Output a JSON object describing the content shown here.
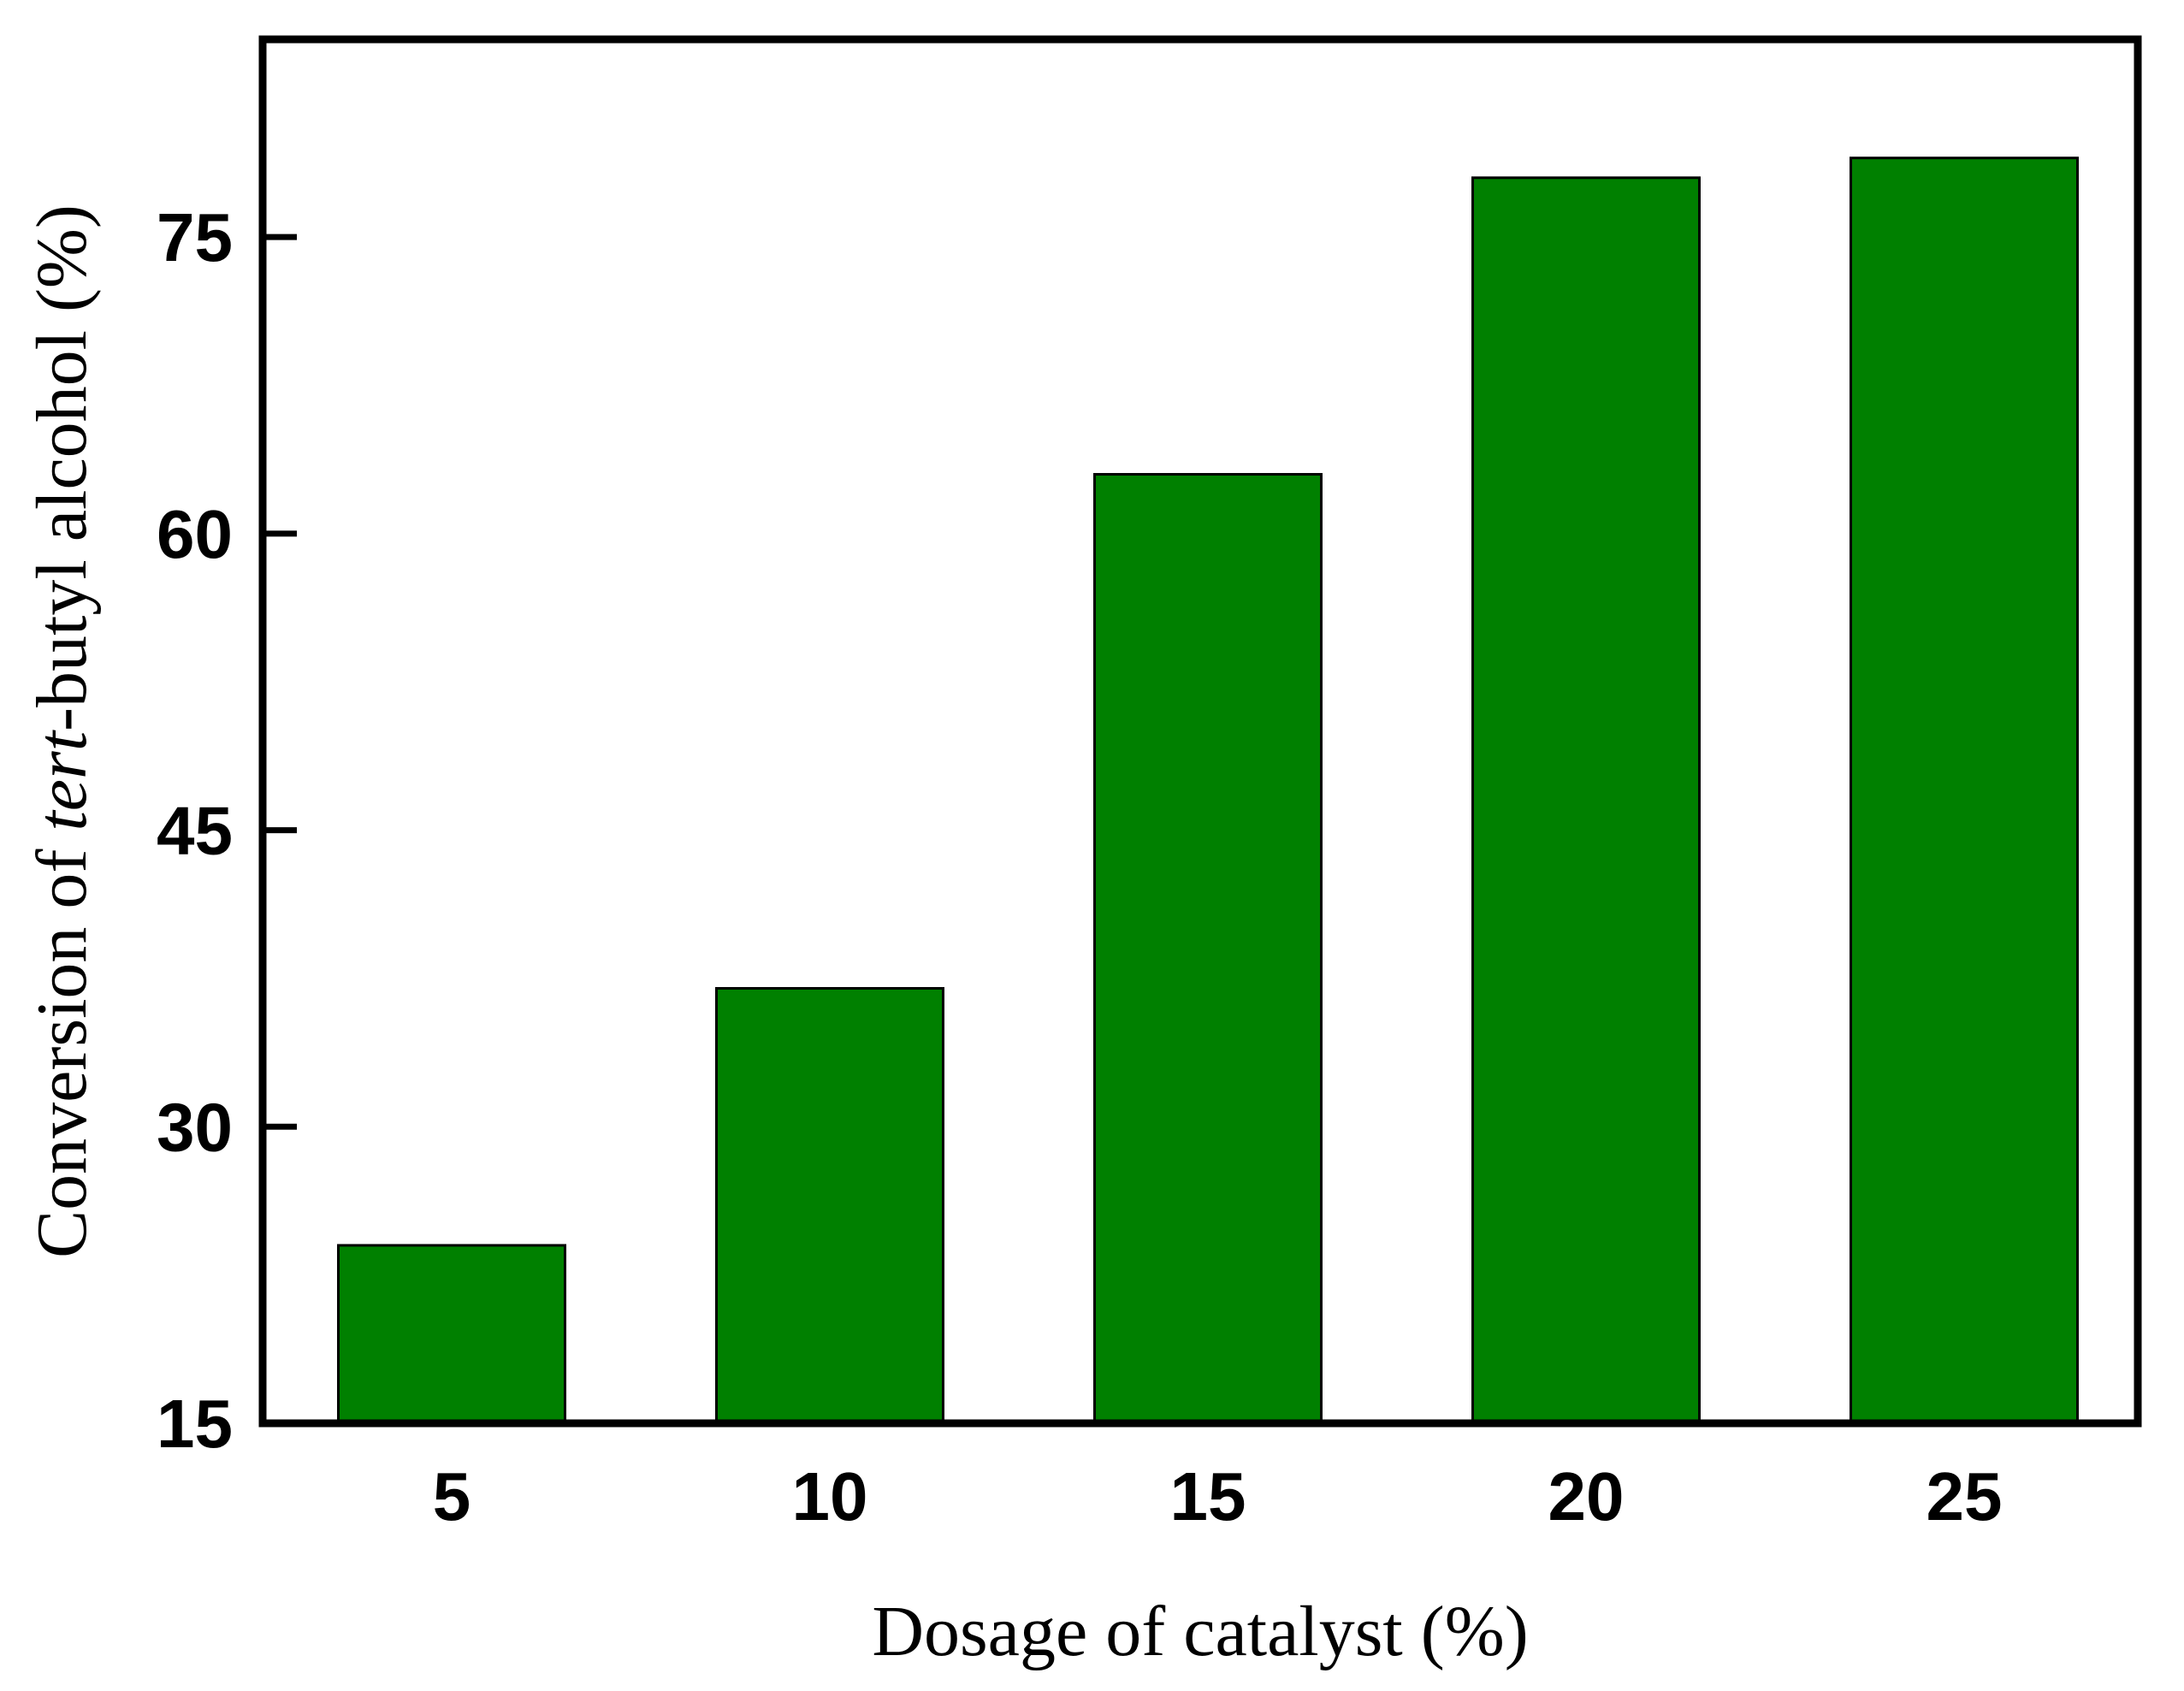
{
  "chart_data": {
    "type": "bar",
    "categories": [
      "5",
      "10",
      "15",
      "20",
      "25"
    ],
    "values": [
      24,
      37,
      63,
      78,
      79
    ],
    "title": "",
    "xlabel": "Dosage of catalyst (%)",
    "ylabel_parts": [
      "Conversion of ",
      "tert",
      "-butyl alcohol (%)"
    ],
    "ylim": [
      15,
      85
    ],
    "yticks": [
      15,
      30,
      45,
      60,
      75
    ],
    "ytick_labels": [
      "15",
      "30",
      "45",
      "60",
      "75"
    ],
    "bar_color": "#008000",
    "grid": false,
    "legend": "none"
  }
}
